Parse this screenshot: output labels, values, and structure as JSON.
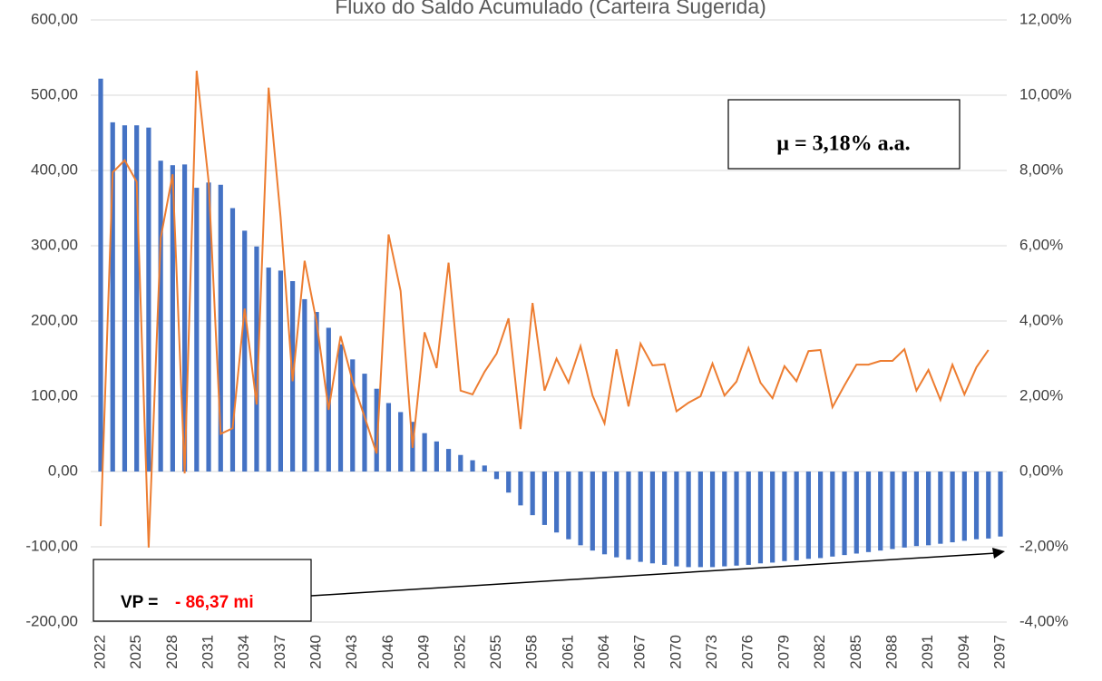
{
  "chart_data": {
    "type": "bar_line",
    "title": "Fluxo do Saldo Acumulado (Carteira Sugerida)",
    "categories": [
      "2022",
      null,
      null,
      "2025",
      null,
      null,
      "2028",
      null,
      null,
      "2031",
      null,
      null,
      "2034",
      null,
      null,
      "2037",
      null,
      null,
      "2040",
      null,
      null,
      "2043",
      null,
      null,
      "2046",
      null,
      null,
      "2049",
      null,
      null,
      "2052",
      null,
      null,
      "2055",
      null,
      null,
      "2058",
      null,
      null,
      "2061",
      null,
      null,
      "2064",
      null,
      null,
      "2067",
      null,
      null,
      "2070",
      null,
      null,
      "2073",
      null,
      null,
      "2076",
      null,
      null,
      "2079",
      null,
      null,
      "2082",
      null,
      null,
      "2085",
      null,
      null,
      "2088",
      null,
      null,
      "2091",
      null,
      null,
      "2094",
      null,
      null,
      "2097"
    ],
    "series": [
      {
        "type": "bar",
        "color": "#4472c4",
        "values": [
          522,
          464,
          460,
          460,
          457,
          413,
          407,
          408,
          377,
          384,
          381,
          350,
          320,
          299,
          271,
          267,
          253,
          229,
          212,
          191,
          169,
          149,
          130,
          110,
          91,
          79,
          66,
          51,
          40,
          30,
          22,
          15,
          8,
          -10,
          -28,
          -45,
          -58,
          -71,
          -81,
          -90,
          -98,
          -105,
          -110,
          -114,
          -117,
          -120,
          -122,
          -124,
          -126,
          -127,
          -127,
          -127,
          -126,
          -125,
          -124,
          -122,
          -121,
          -119,
          -118,
          -116,
          -115,
          -113,
          -111,
          -109,
          -107,
          -105,
          -103,
          -101,
          -99,
          -98,
          -96,
          -94,
          -92,
          -90,
          -89,
          -86.37
        ]
      },
      {
        "type": "line",
        "axis": "y2",
        "color": "#ed7d31",
        "values": [
          -1.45,
          7.95,
          8.27,
          7.7,
          -2.02,
          6.2,
          7.9,
          -0.05,
          10.65,
          7.7,
          1.0,
          1.15,
          4.33,
          1.78,
          10.2,
          6.75,
          2.4,
          5.6,
          3.97,
          1.64,
          3.6,
          2.4,
          1.45,
          0.48,
          6.3,
          4.8,
          0.63,
          3.7,
          2.75,
          5.55,
          2.15,
          2.05,
          2.65,
          3.13,
          4.07,
          1.13,
          4.48,
          2.15,
          3.0,
          2.36,
          3.33,
          2.02,
          1.28,
          3.25,
          1.73,
          3.4,
          2.82,
          2.85,
          1.6,
          1.83,
          2.0,
          2.87,
          2.02,
          2.39,
          3.28,
          2.36,
          1.95,
          2.8,
          2.4,
          3.2,
          3.23,
          1.71,
          2.29,
          2.84,
          2.84,
          2.94,
          2.94,
          3.25,
          2.15,
          2.7,
          1.9,
          2.84,
          2.05,
          2.77,
          3.23,
          null
        ]
      }
    ],
    "ylim": [
      -200,
      600
    ],
    "yticks": [
      {
        "value": -200,
        "label": "-200,00"
      },
      {
        "value": -100,
        "label": "-100,00"
      },
      {
        "value": 0,
        "label": "0,00"
      },
      {
        "value": 100,
        "label": "100,00"
      },
      {
        "value": 200,
        "label": "200,00"
      },
      {
        "value": 300,
        "label": "300,00"
      },
      {
        "value": 400,
        "label": "400,00"
      },
      {
        "value": 500,
        "label": "500,00"
      },
      {
        "value": 600,
        "label": "600,00"
      }
    ],
    "y2lim": [
      -4,
      12
    ],
    "y2ticks": [
      {
        "value": -4,
        "label": "-4,00%"
      },
      {
        "value": -2,
        "label": "-2,00%"
      },
      {
        "value": 0,
        "label": "0,00%"
      },
      {
        "value": 2,
        "label": "2,00%"
      },
      {
        "value": 4,
        "label": "4,00%"
      },
      {
        "value": 6,
        "label": "6,00%"
      },
      {
        "value": 8,
        "label": "8,00%"
      },
      {
        "value": 10,
        "label": "10,00%"
      },
      {
        "value": 12,
        "label": "12,00%"
      }
    ],
    "grid": true,
    "annotations": [
      "μ = 3,18% a.a.",
      "VP =",
      "- 86,37 mi"
    ]
  }
}
